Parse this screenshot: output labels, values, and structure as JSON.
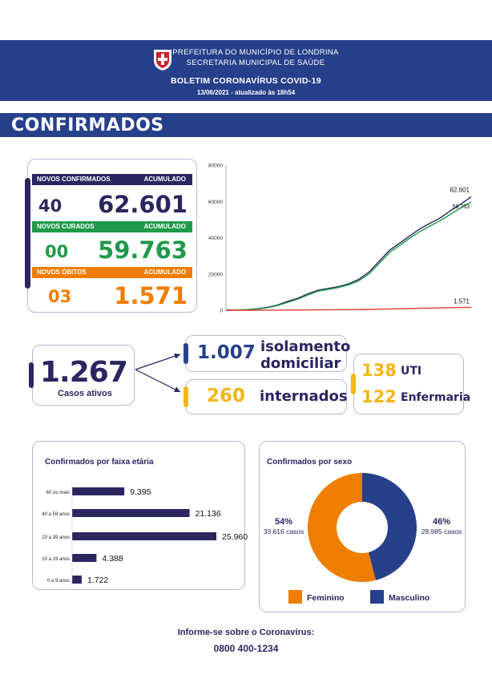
{
  "header": {
    "line1": "PREFEITURA DO MUNICÍPIO DE LONDRINA",
    "line2": "SECRETARIA MUNICIPAL DE SAÚDE",
    "title": "BOLETIM CORONAVÍRUS COVID-19",
    "date": "13/06/2021 - atualizado às 18h54"
  },
  "section": {
    "title": "CONFIRMADOS"
  },
  "stats": {
    "confirmados": {
      "label": "NOVOS CONFIRMADOS",
      "acc_label": "ACUMULADO",
      "new": "40",
      "total": "62.601"
    },
    "curados": {
      "label": "NOVOS CURADOS",
      "acc_label": "ACUMULADO",
      "new": "00",
      "total": "59.763"
    },
    "obitos": {
      "label": "NOVOS ÓBITOS",
      "acc_label": "ACUMULADO",
      "new": "03",
      "total": "1.571"
    }
  },
  "ativos": {
    "value": "1.267",
    "label": "Casos ativos",
    "isolamento_value": "1.007",
    "isolamento_label1": "isolamento",
    "isolamento_label2": "domiciliar",
    "internados_value": "260",
    "internados_label": "internados",
    "uti_value": "138",
    "uti_label": "UTI",
    "enfermaria_value": "122",
    "enfermaria_label": "Enfermaria"
  },
  "colors": {
    "navy": "#2b2560",
    "blue": "#27408c",
    "green": "#1f9a4a",
    "orange": "#ef7d00",
    "yellow": "#f3b51a",
    "red": "#e03a2f"
  },
  "chart_data": [
    {
      "type": "line",
      "title": "",
      "ylim": [
        0,
        80000
      ],
      "yticks": [
        "80000",
        "60000",
        "40000",
        "20000",
        "0"
      ],
      "series": [
        {
          "name": "Confirmados",
          "color": "#2b2560",
          "values": [
            0,
            100,
            300,
            800,
            1500,
            2800,
            4800,
            6500,
            9000,
            11000,
            12000,
            13000,
            14500,
            17000,
            21000,
            27000,
            33000,
            37000,
            41000,
            45000,
            48000,
            51000,
            55000,
            58500,
            62601
          ],
          "end_label": "62.601"
        },
        {
          "name": "Curados",
          "color": "#1f9a4a",
          "values": [
            0,
            80,
            250,
            650,
            1300,
            2500,
            4300,
            6000,
            8400,
            10500,
            11500,
            12500,
            14000,
            16200,
            20000,
            25800,
            31800,
            35800,
            39800,
            43500,
            46500,
            49500,
            53000,
            56500,
            59763
          ],
          "end_label": "59.763"
        },
        {
          "name": "Óbitos",
          "color": "#e03a2f",
          "values": [
            0,
            2,
            5,
            15,
            30,
            60,
            100,
            140,
            190,
            240,
            270,
            300,
            330,
            380,
            450,
            560,
            700,
            830,
            950,
            1080,
            1200,
            1300,
            1400,
            1500,
            1571
          ],
          "end_label": "1.571"
        }
      ]
    },
    {
      "type": "bar",
      "title": "Confirmados por faixa etária",
      "categories": [
        "60 ou mais",
        "40 a 59 anos",
        "20 a 39 anos",
        "10 a 19 anos",
        "0 a 9 anos"
      ],
      "values": [
        9395,
        21136,
        25960,
        4388,
        1722
      ],
      "labels": [
        "9.395",
        "21.136",
        "25.960",
        "4.388",
        "1.722"
      ]
    },
    {
      "type": "pie",
      "title": "Confirmados por sexo",
      "slices": [
        {
          "name": "Feminino",
          "value": 54,
          "pct": "54%",
          "cases": "33.616 casos",
          "color": "#ef7d00"
        },
        {
          "name": "Masculino",
          "value": 46,
          "pct": "46%",
          "cases": "28.985 casos",
          "color": "#27408c"
        }
      ]
    }
  ],
  "footer": {
    "line1": "Informe-se sobre o Coronavírus:",
    "line2": "0800 400-1234"
  }
}
